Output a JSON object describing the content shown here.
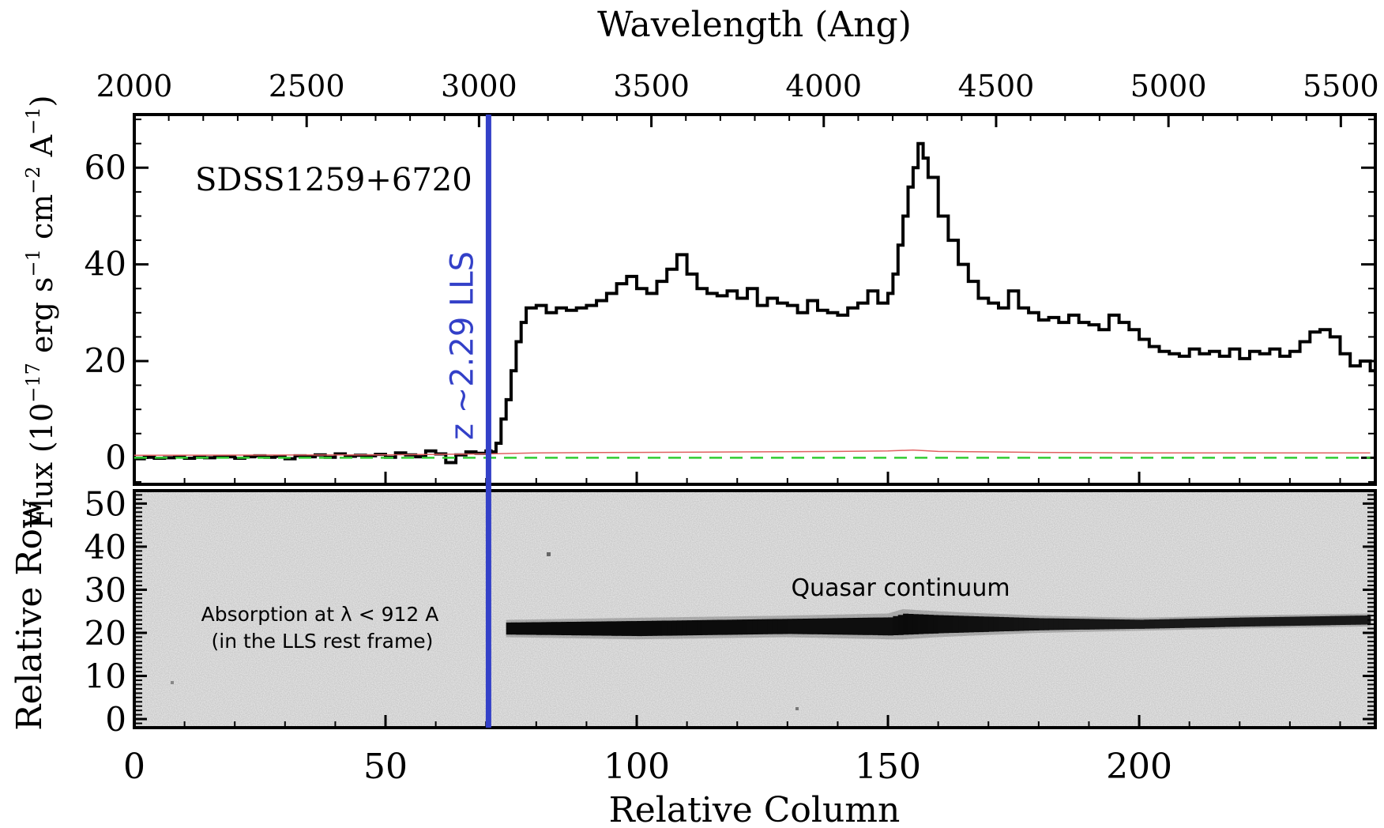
{
  "chart_data": {
    "type": "line",
    "object_label": "SDSS1259+6720",
    "top_axis": {
      "label": "Wavelength (Ang)",
      "range": [
        2000,
        5600
      ],
      "tick_values": [
        2000,
        2500,
        3000,
        3500,
        4000,
        4500,
        5000,
        5500
      ]
    },
    "bottom_axis": {
      "label": "Relative Column",
      "range": [
        0,
        247
      ],
      "tick_values": [
        0,
        50,
        100,
        150,
        200
      ]
    },
    "spectrum_panel": {
      "ylabel": "Flux (10^-17 erg s^-1 cm^-2 A^-1)",
      "ylim": [
        -5.5,
        71
      ],
      "tick_values": [
        0,
        20,
        40,
        60
      ],
      "series": [
        {
          "style": "histogram",
          "color": "#000000",
          "x": [
            0,
            2,
            4,
            6,
            8,
            10,
            12,
            14,
            16,
            18,
            20,
            22,
            24,
            26,
            28,
            30,
            32,
            34,
            36,
            38,
            40,
            42,
            44,
            46,
            48,
            50,
            52,
            54,
            56,
            58,
            60,
            62,
            64,
            66,
            68,
            70,
            71,
            72,
            73,
            74,
            75,
            76,
            77,
            78,
            80,
            82,
            84,
            86,
            88,
            90,
            92,
            94,
            96,
            98,
            100,
            102,
            104,
            106,
            108,
            110,
            112,
            114,
            116,
            118,
            120,
            122,
            124,
            126,
            128,
            130,
            132,
            134,
            136,
            138,
            140,
            142,
            144,
            146,
            148,
            150,
            151,
            152,
            153,
            154,
            155,
            156,
            157,
            158,
            160,
            162,
            164,
            166,
            168,
            170,
            172,
            174,
            176,
            178,
            180,
            182,
            184,
            186,
            188,
            190,
            192,
            194,
            196,
            198,
            200,
            202,
            204,
            206,
            208,
            210,
            212,
            214,
            216,
            218,
            220,
            222,
            224,
            226,
            228,
            230,
            232,
            234,
            236,
            238,
            240,
            242,
            244,
            246
          ],
          "y": [
            -0.2,
            0.1,
            -0.1,
            0.0,
            0.2,
            -0.1,
            0.1,
            0.0,
            0.3,
            0.2,
            -0.1,
            0.2,
            0.4,
            0.1,
            0.3,
            -0.2,
            0.4,
            0.2,
            0.6,
            0.1,
            0.8,
            0.3,
            0.5,
            0.4,
            0.7,
            0.1,
            1.0,
            0.6,
            0.2,
            1.4,
            0.8,
            -1.0,
            0.6,
            1.2,
            0.9,
            1.4,
            1.2,
            3.0,
            8.0,
            12.0,
            18.0,
            24.0,
            28.0,
            31.0,
            31.5,
            30.0,
            31.0,
            30.5,
            31.0,
            31.5,
            32.5,
            34.0,
            36.0,
            37.5,
            35.0,
            34.0,
            36.5,
            39.0,
            42.0,
            38.0,
            35.0,
            34.0,
            33.5,
            34.5,
            33.0,
            35.0,
            31.5,
            33.0,
            32.0,
            31.5,
            30.0,
            32.5,
            30.5,
            30.0,
            29.5,
            31.0,
            32.0,
            34.5,
            32.0,
            34.0,
            38.0,
            44.0,
            50.0,
            56.0,
            60.0,
            65.0,
            62.0,
            58.0,
            50.0,
            45.0,
            40.0,
            36.5,
            33.0,
            32.0,
            31.0,
            34.5,
            31.0,
            30.0,
            28.5,
            29.0,
            28.0,
            29.5,
            28.0,
            27.5,
            26.5,
            29.5,
            28.0,
            26.5,
            24.5,
            23.0,
            22.0,
            21.5,
            21.0,
            22.5,
            21.5,
            22.0,
            21.0,
            22.5,
            20.5,
            22.0,
            21.5,
            22.5,
            21.0,
            22.0,
            24.0,
            26.0,
            26.5,
            25.0,
            21.5,
            19.0,
            20.0,
            18.0
          ]
        },
        {
          "style": "line",
          "color": "#e06060",
          "x": [
            0,
            50,
            70,
            80,
            100,
            120,
            140,
            150,
            155,
            160,
            180,
            200,
            220,
            246
          ],
          "y": [
            0.5,
            0.6,
            0.8,
            1.0,
            1.1,
            1.2,
            1.3,
            1.4,
            1.6,
            1.3,
            1.1,
            1.0,
            1.0,
            1.0
          ]
        },
        {
          "style": "dashed",
          "color": "#33cc33",
          "x": [
            0,
            246
          ],
          "y": [
            0,
            0
          ]
        }
      ]
    },
    "image_panel": {
      "ylabel": "Relative Row",
      "ylim": [
        -2,
        53
      ],
      "tick_values": [
        0,
        10,
        20,
        30,
        40,
        50
      ],
      "trace": {
        "x": [
          74,
          100,
          130,
          150,
          153,
          160,
          180,
          200,
          220,
          246
        ],
        "row_center": [
          21,
          21,
          21.5,
          21.5,
          22,
          22,
          22,
          22,
          22.5,
          23
        ],
        "width_rows": [
          4,
          5,
          5,
          6,
          7,
          6,
          4,
          3,
          3,
          3
        ],
        "darkness": [
          1.0,
          1.0,
          0.95,
          0.95,
          1.0,
          0.95,
          0.85,
          0.8,
          0.75,
          0.8
        ]
      },
      "annotations": [
        {
          "text_line1": "Absorption at  λ < 912 A",
          "text_line2": "(in the LLS rest frame)"
        },
        {
          "text": "Quasar continuum"
        }
      ]
    },
    "marker": {
      "label": "z ~2.29 LLS",
      "column": 70.5,
      "color": "#3340c8"
    }
  }
}
